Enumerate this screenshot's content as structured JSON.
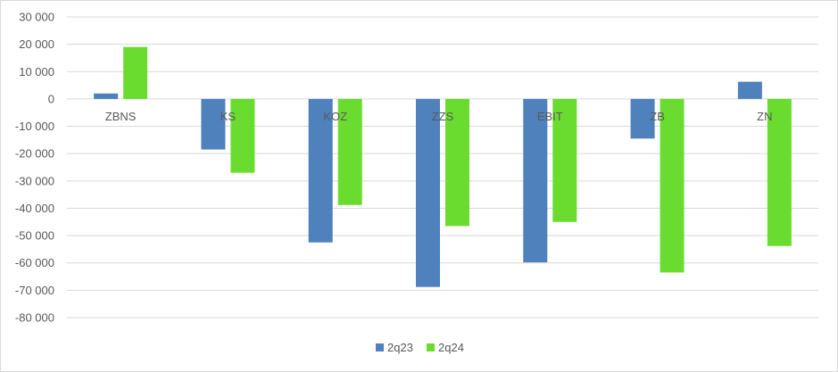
{
  "chart_data": {
    "type": "bar",
    "categories": [
      "ZBNS",
      "KS",
      "KOZ",
      "ZZS",
      "EBIT",
      "ZB",
      "ZN"
    ],
    "series": [
      {
        "name": "2q23",
        "color": "#4f81bd",
        "values": [
          2000,
          -18500,
          -52500,
          -68800,
          -59800,
          -14500,
          6300
        ]
      },
      {
        "name": "2q24",
        "color": "#6adc2f",
        "values": [
          19000,
          -27000,
          -38800,
          -46500,
          -45000,
          -63500,
          -53800
        ]
      }
    ],
    "ylim": [
      -80000,
      30000
    ],
    "yticks": [
      30000,
      20000,
      10000,
      0,
      -10000,
      -20000,
      -30000,
      -40000,
      -50000,
      -60000,
      -70000,
      -80000
    ],
    "ytick_labels": [
      "30 000",
      "20 000",
      "10 000",
      "0",
      "-10 000",
      "-20 000",
      "-30 000",
      "-40 000",
      "-50 000",
      "-60 000",
      "-70 000",
      "-80 000"
    ],
    "grid": true,
    "legend_position": "bottom"
  }
}
